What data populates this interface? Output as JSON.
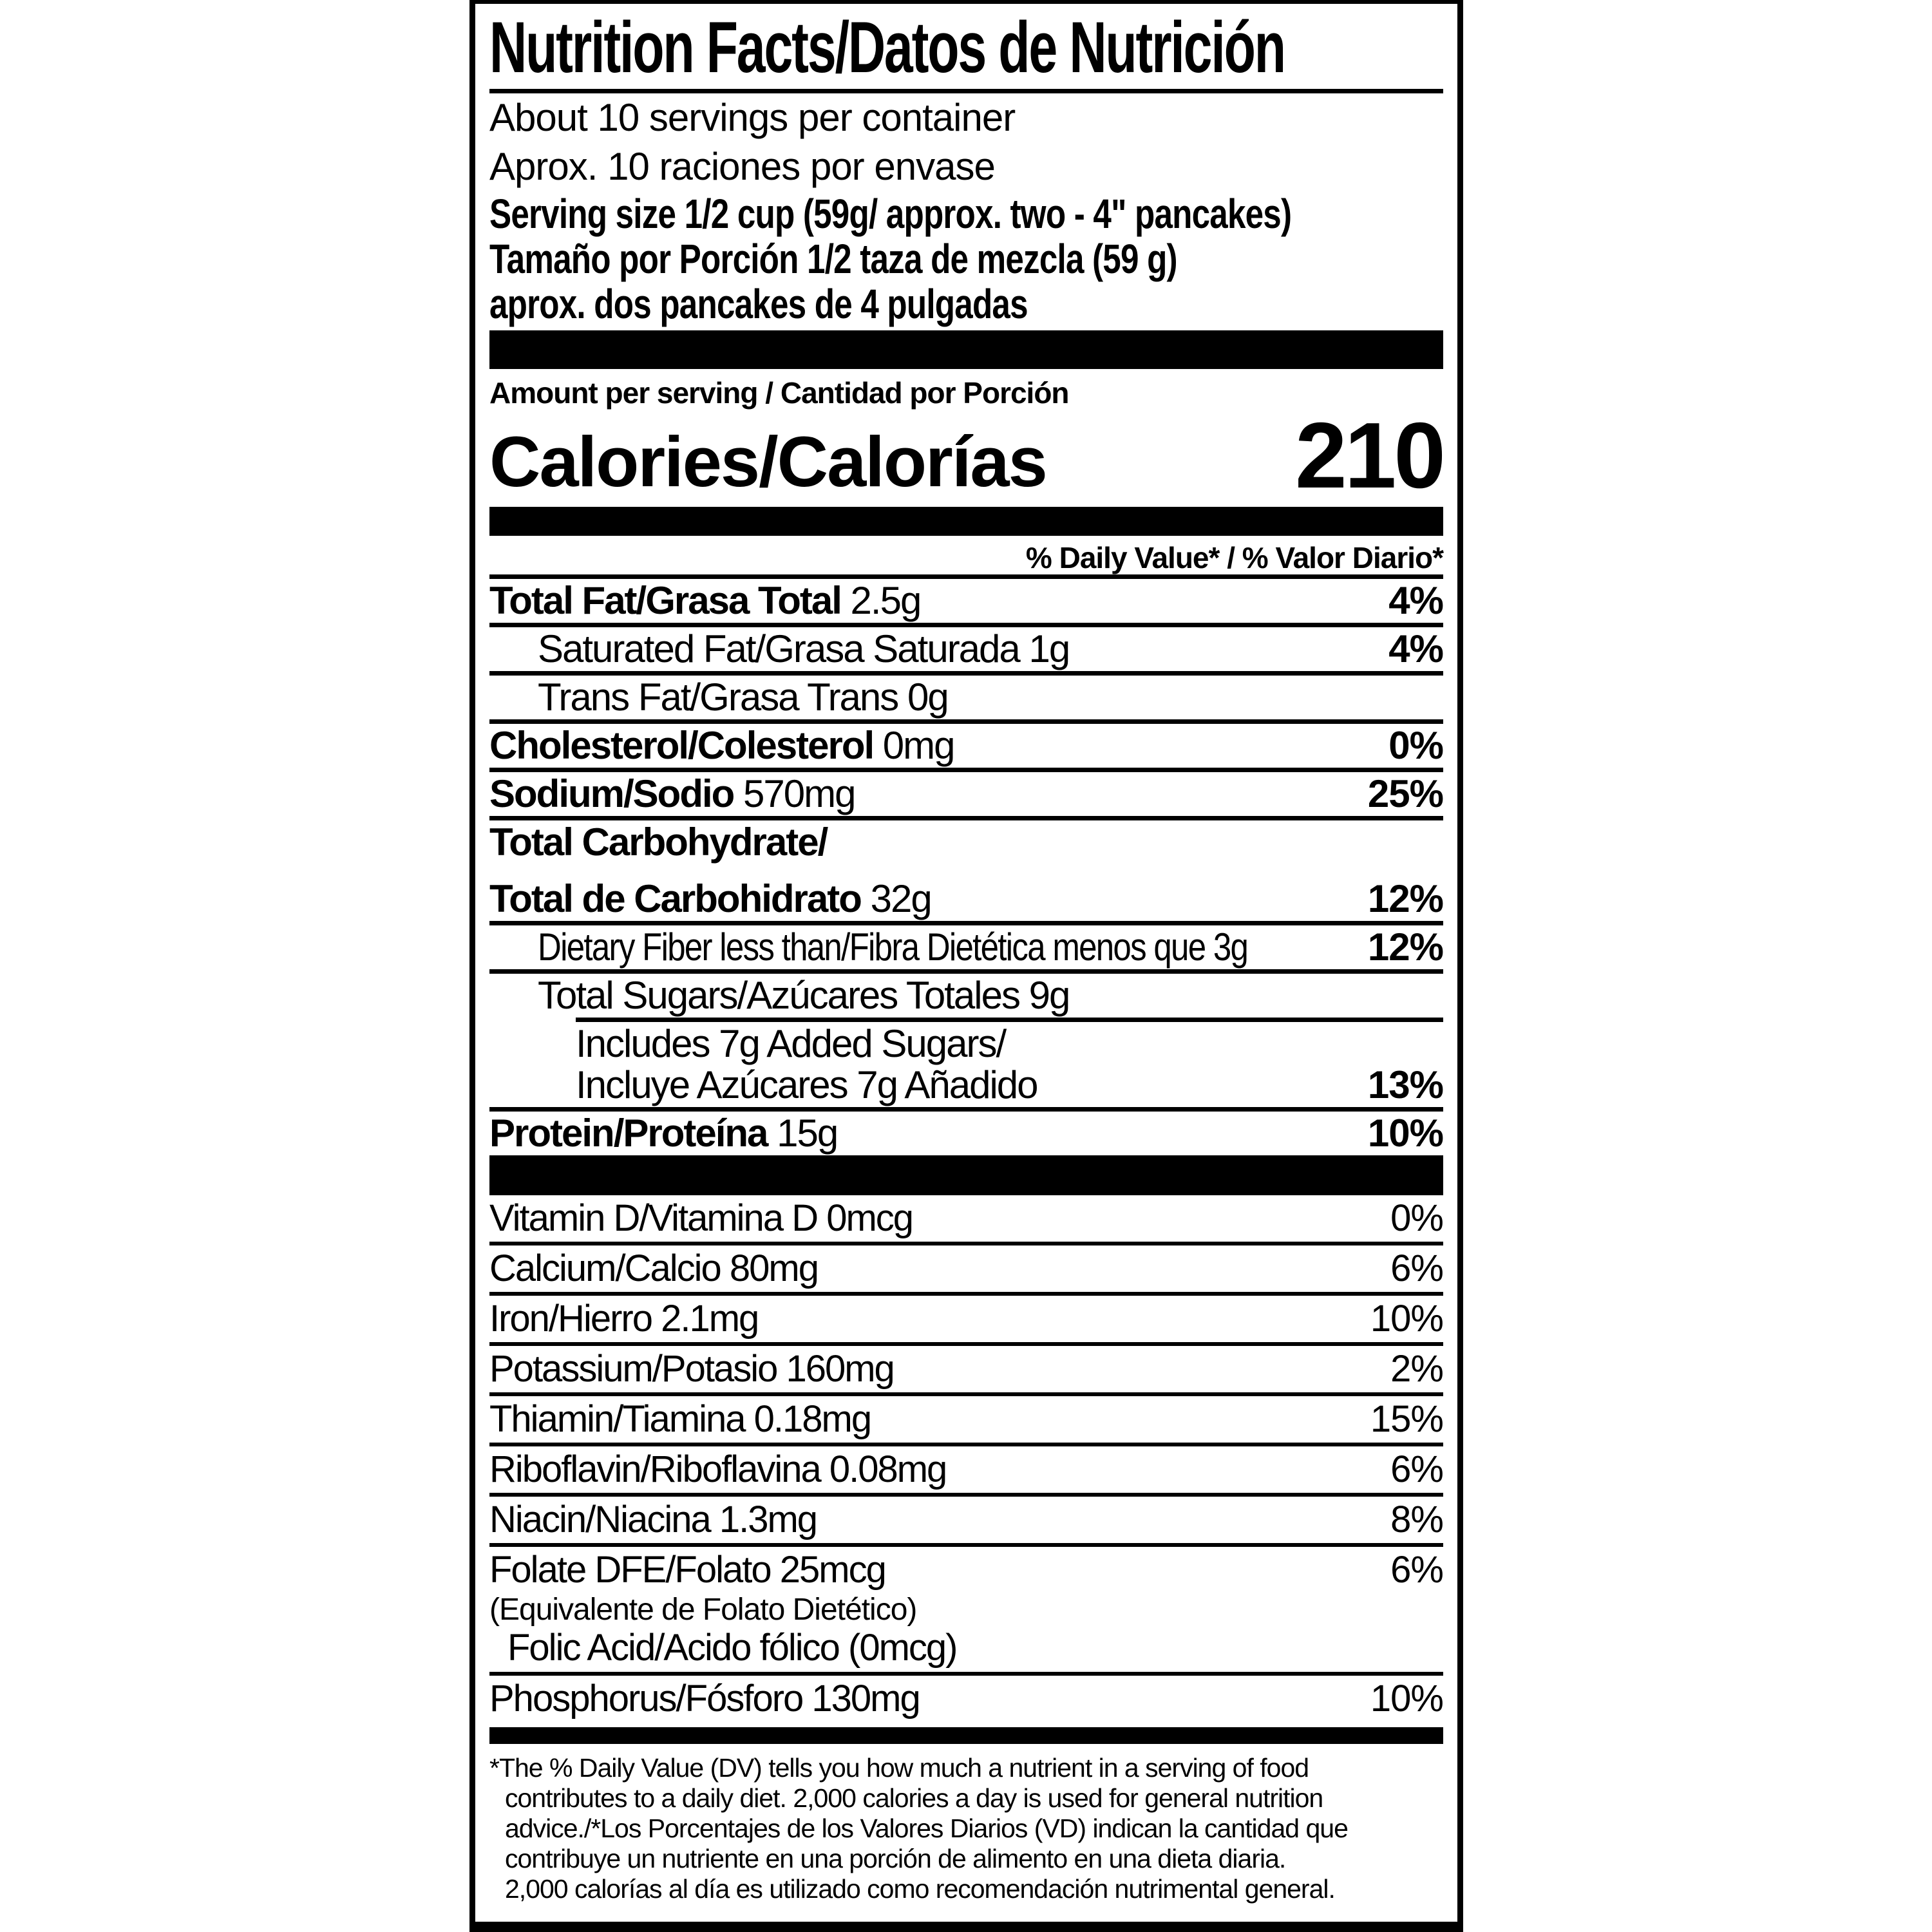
{
  "colors": {
    "ink": "#000000",
    "paper": "#ffffff"
  },
  "header": {
    "title": "Nutrition Facts/Datos de Nutrición",
    "servings_en": "About 10 servings per container",
    "servings_es": "Aprox. 10 raciones por envase",
    "serving_size_en": "Serving size 1/2 cup (59g/ approx. two - 4\" pancakes)",
    "serving_size_es1": "Tamaño por Porción 1/2 taza de mezcla (59 g)",
    "serving_size_es2": "aprox. dos pancakes de 4 pulgadas"
  },
  "calories": {
    "amount_label": "Amount per serving / Cantidad por Porción",
    "label": "Calories/Calorías",
    "value": "210"
  },
  "daily_value_header": "% Daily Value* / % Valor Diario*",
  "nutrients": [
    {
      "indent": 0,
      "pct": "4%",
      "lines": [
        [
          {
            "bold": "Total Fat/Grasa Total"
          },
          {
            "reg": " 2.5g"
          }
        ]
      ]
    },
    {
      "indent": 1,
      "pct": "4%",
      "lines": [
        [
          {
            "reg": "Saturated Fat/Grasa Saturada 1g"
          }
        ]
      ]
    },
    {
      "indent": 1,
      "pct": "",
      "lines": [
        [
          {
            "reg": "Trans Fat/Grasa Trans 0g"
          }
        ]
      ]
    },
    {
      "indent": 0,
      "pct": "0%",
      "lines": [
        [
          {
            "bold": "Cholesterol/Colesterol"
          },
          {
            "reg": " 0mg"
          }
        ]
      ]
    },
    {
      "indent": 0,
      "pct": "25%",
      "lines": [
        [
          {
            "bold": "Sodium/Sodio"
          },
          {
            "reg": " 570mg"
          }
        ]
      ]
    },
    {
      "indent": 0,
      "pct": "12%",
      "gap2": true,
      "lines": [
        [
          {
            "bold": "Total Carbohydrate/"
          }
        ],
        [
          {
            "bold": "Total de Carbohidrato"
          },
          {
            "reg": " 32g"
          }
        ]
      ]
    },
    {
      "indent": 1,
      "pct": "12%",
      "condensed": true,
      "lines": [
        [
          {
            "reg": "Dietary Fiber less than/Fibra Dietética menos que 3g"
          }
        ]
      ]
    },
    {
      "indent": 1,
      "pct": "",
      "lines": [
        [
          {
            "reg": "Total Sugars/Azúcares Totales 9g"
          }
        ]
      ]
    },
    {
      "indent": 2,
      "pct": "13%",
      "rule_inset": 134,
      "lines": [
        [
          {
            "reg": "Includes 7g Added Sugars/"
          }
        ],
        [
          {
            "reg": "Incluye Azúcares 7g Añadido"
          }
        ]
      ]
    },
    {
      "indent": 0,
      "pct": "10%",
      "lines": [
        [
          {
            "bold": "Protein/Proteína"
          },
          {
            "reg": " 15g"
          }
        ]
      ]
    }
  ],
  "vitamins": [
    {
      "name": "Vitamin D/Vitamina D 0mcg",
      "pct": "0%"
    },
    {
      "name": "Calcium/Calcio 80mg",
      "pct": "6%"
    },
    {
      "name": "Iron/Hierro 2.1mg",
      "pct": "10%"
    },
    {
      "name": "Potassium/Potasio 160mg",
      "pct": "2%"
    },
    {
      "name": "Thiamin/Tiamina 0.18mg",
      "pct": "15%"
    },
    {
      "name": "Riboflavin/Riboflavina 0.08mg",
      "pct": "6%"
    },
    {
      "name": "Niacin/Niacina 1.3mg",
      "pct": "8%"
    },
    {
      "name": "Folate DFE/Folato 25mcg",
      "pct": "6%",
      "note": "(Equivalente de Folato Dietético)",
      "sub": "Folic Acid/Acido fólico (0mcg)"
    },
    {
      "name": "Phosphorus/Fósforo 130mg",
      "pct": "10%"
    }
  ],
  "footnote_lines": [
    "*The % Daily Value (DV) tells you how much a nutrient in a serving of food",
    "contributes to a daily diet. 2,000 calories a day is used for general nutrition",
    "advice./*Los Porcentajes de los Valores Diarios (VD) indican la cantidad que",
    "contribuye un nutriente en una porción de alimento en una dieta diaria.",
    "2,000 calorías al día es utilizado como recomendación nutrimental general."
  ]
}
